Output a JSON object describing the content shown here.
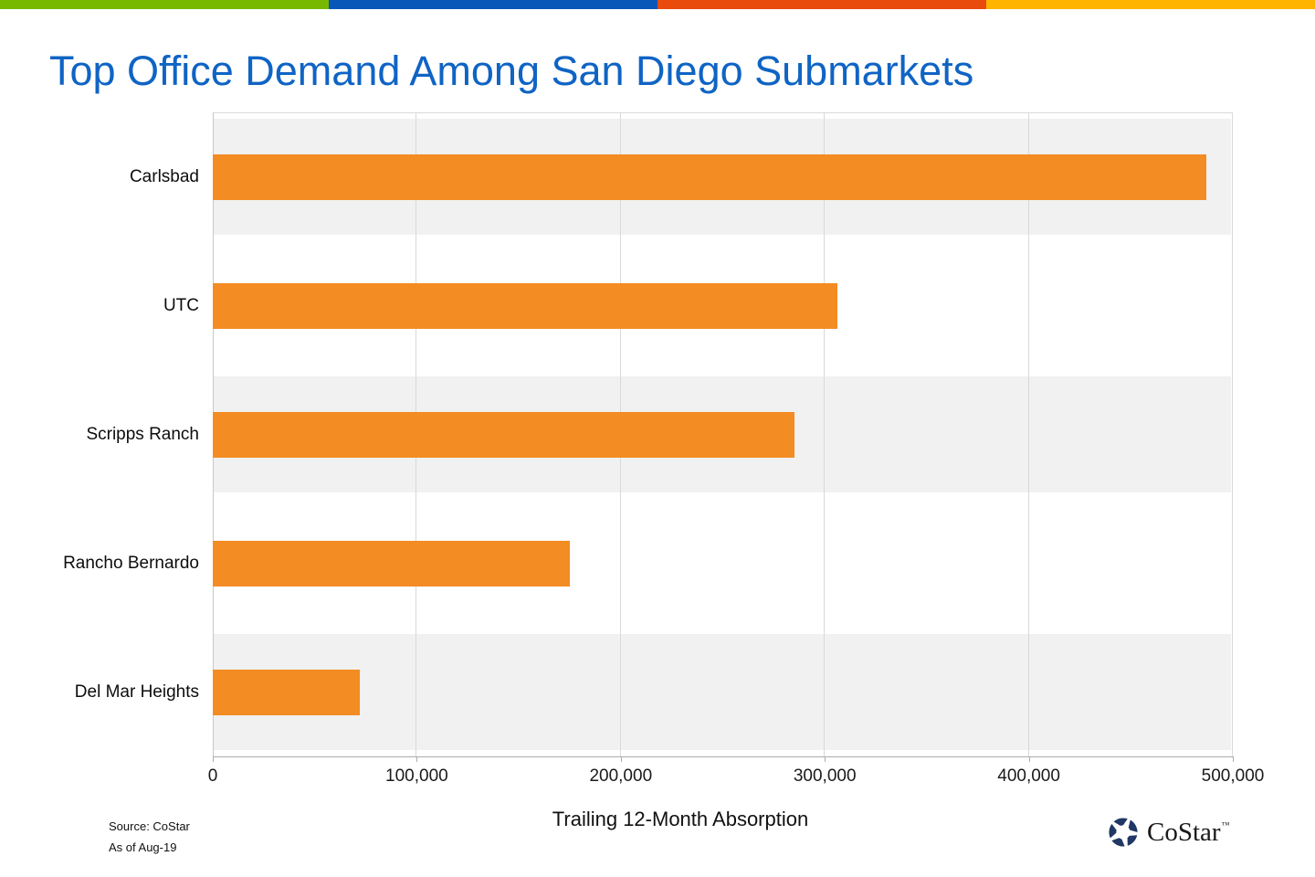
{
  "top_stripe": {
    "colors": [
      "#76B900",
      "#0657B8",
      "#E84B0C",
      "#FFB400"
    ]
  },
  "title": {
    "text": "Top Office Demand Among San Diego Submarkets",
    "color": "#0F64C4"
  },
  "chart_data": {
    "type": "bar",
    "orientation": "horizontal",
    "title": "Top Office Demand Among San Diego Submarkets",
    "categories": [
      "Carlsbad",
      "UTC",
      "Scripps Ranch",
      "Rancho Bernardo",
      "Del Mar Heights"
    ],
    "values": [
      487000,
      306000,
      285000,
      175000,
      72000
    ],
    "xlabel": "Trailing 12-Month Absorption",
    "ylabel": "",
    "xlim": [
      0,
      500000
    ],
    "xticks": [
      0,
      100000,
      200000,
      300000,
      400000,
      500000
    ],
    "xtick_labels": [
      "0",
      "100,000",
      "200,000",
      "300,000",
      "400,000",
      "500,000"
    ],
    "grid": true,
    "legend": false,
    "bar_color": "#F38C23",
    "band_color": "#F1F1F1",
    "gridline_color": "#D9D9D9"
  },
  "footer": {
    "source": "Source: CoStar",
    "as_of": "As of Aug-19"
  },
  "logo": {
    "text": "CoStar",
    "tm": "™",
    "icon": "costar-pinwheel-star",
    "color": "#203864"
  }
}
